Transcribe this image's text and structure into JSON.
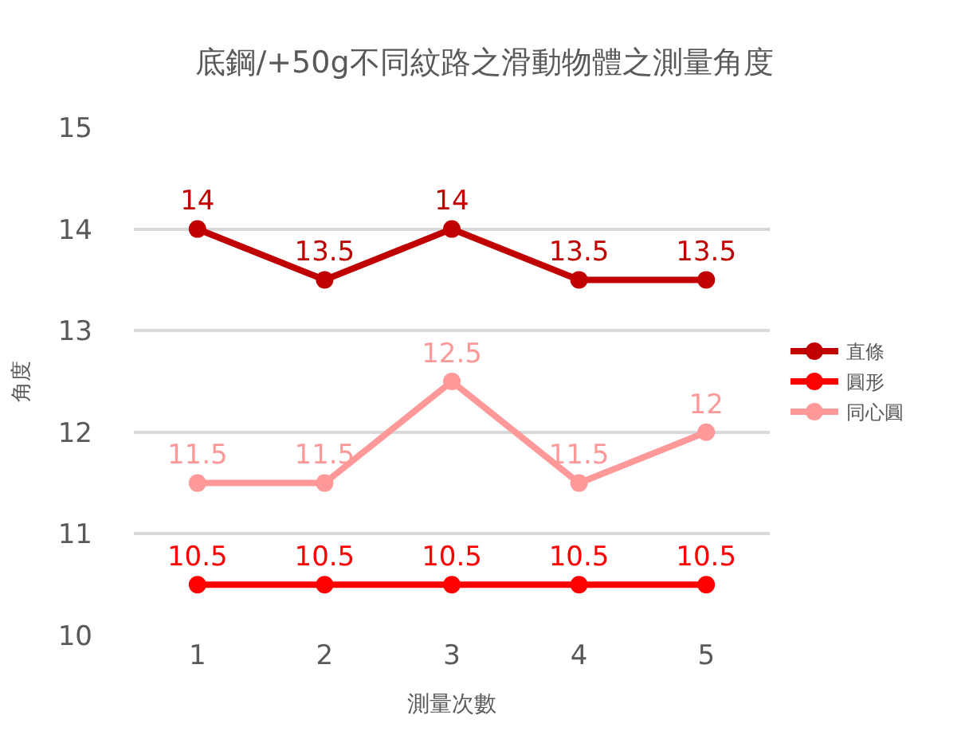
{
  "chart_data": {
    "type": "line",
    "title": "底鋼/+50g不同紋路之滑動物體之測量角度",
    "xlabel": "測量次數",
    "ylabel": "角度",
    "categories": [
      "1",
      "2",
      "3",
      "4",
      "5"
    ],
    "series": [
      {
        "name": "直條",
        "color": "#c00000",
        "values": [
          14,
          13.5,
          14,
          13.5,
          13.5
        ]
      },
      {
        "name": "圓形",
        "color": "#ff0000",
        "values": [
          10.5,
          10.5,
          10.5,
          10.5,
          10.5
        ]
      },
      {
        "name": "同心圓",
        "color": "#ff9999",
        "values": [
          11.5,
          11.5,
          12.5,
          11.5,
          12
        ]
      }
    ],
    "ylim": [
      10,
      15
    ],
    "yticks": [
      10,
      11,
      12,
      13,
      14,
      15
    ],
    "grid": "y",
    "legend": "right",
    "marker": "circle",
    "line_style": "solid",
    "data_labels": true
  }
}
